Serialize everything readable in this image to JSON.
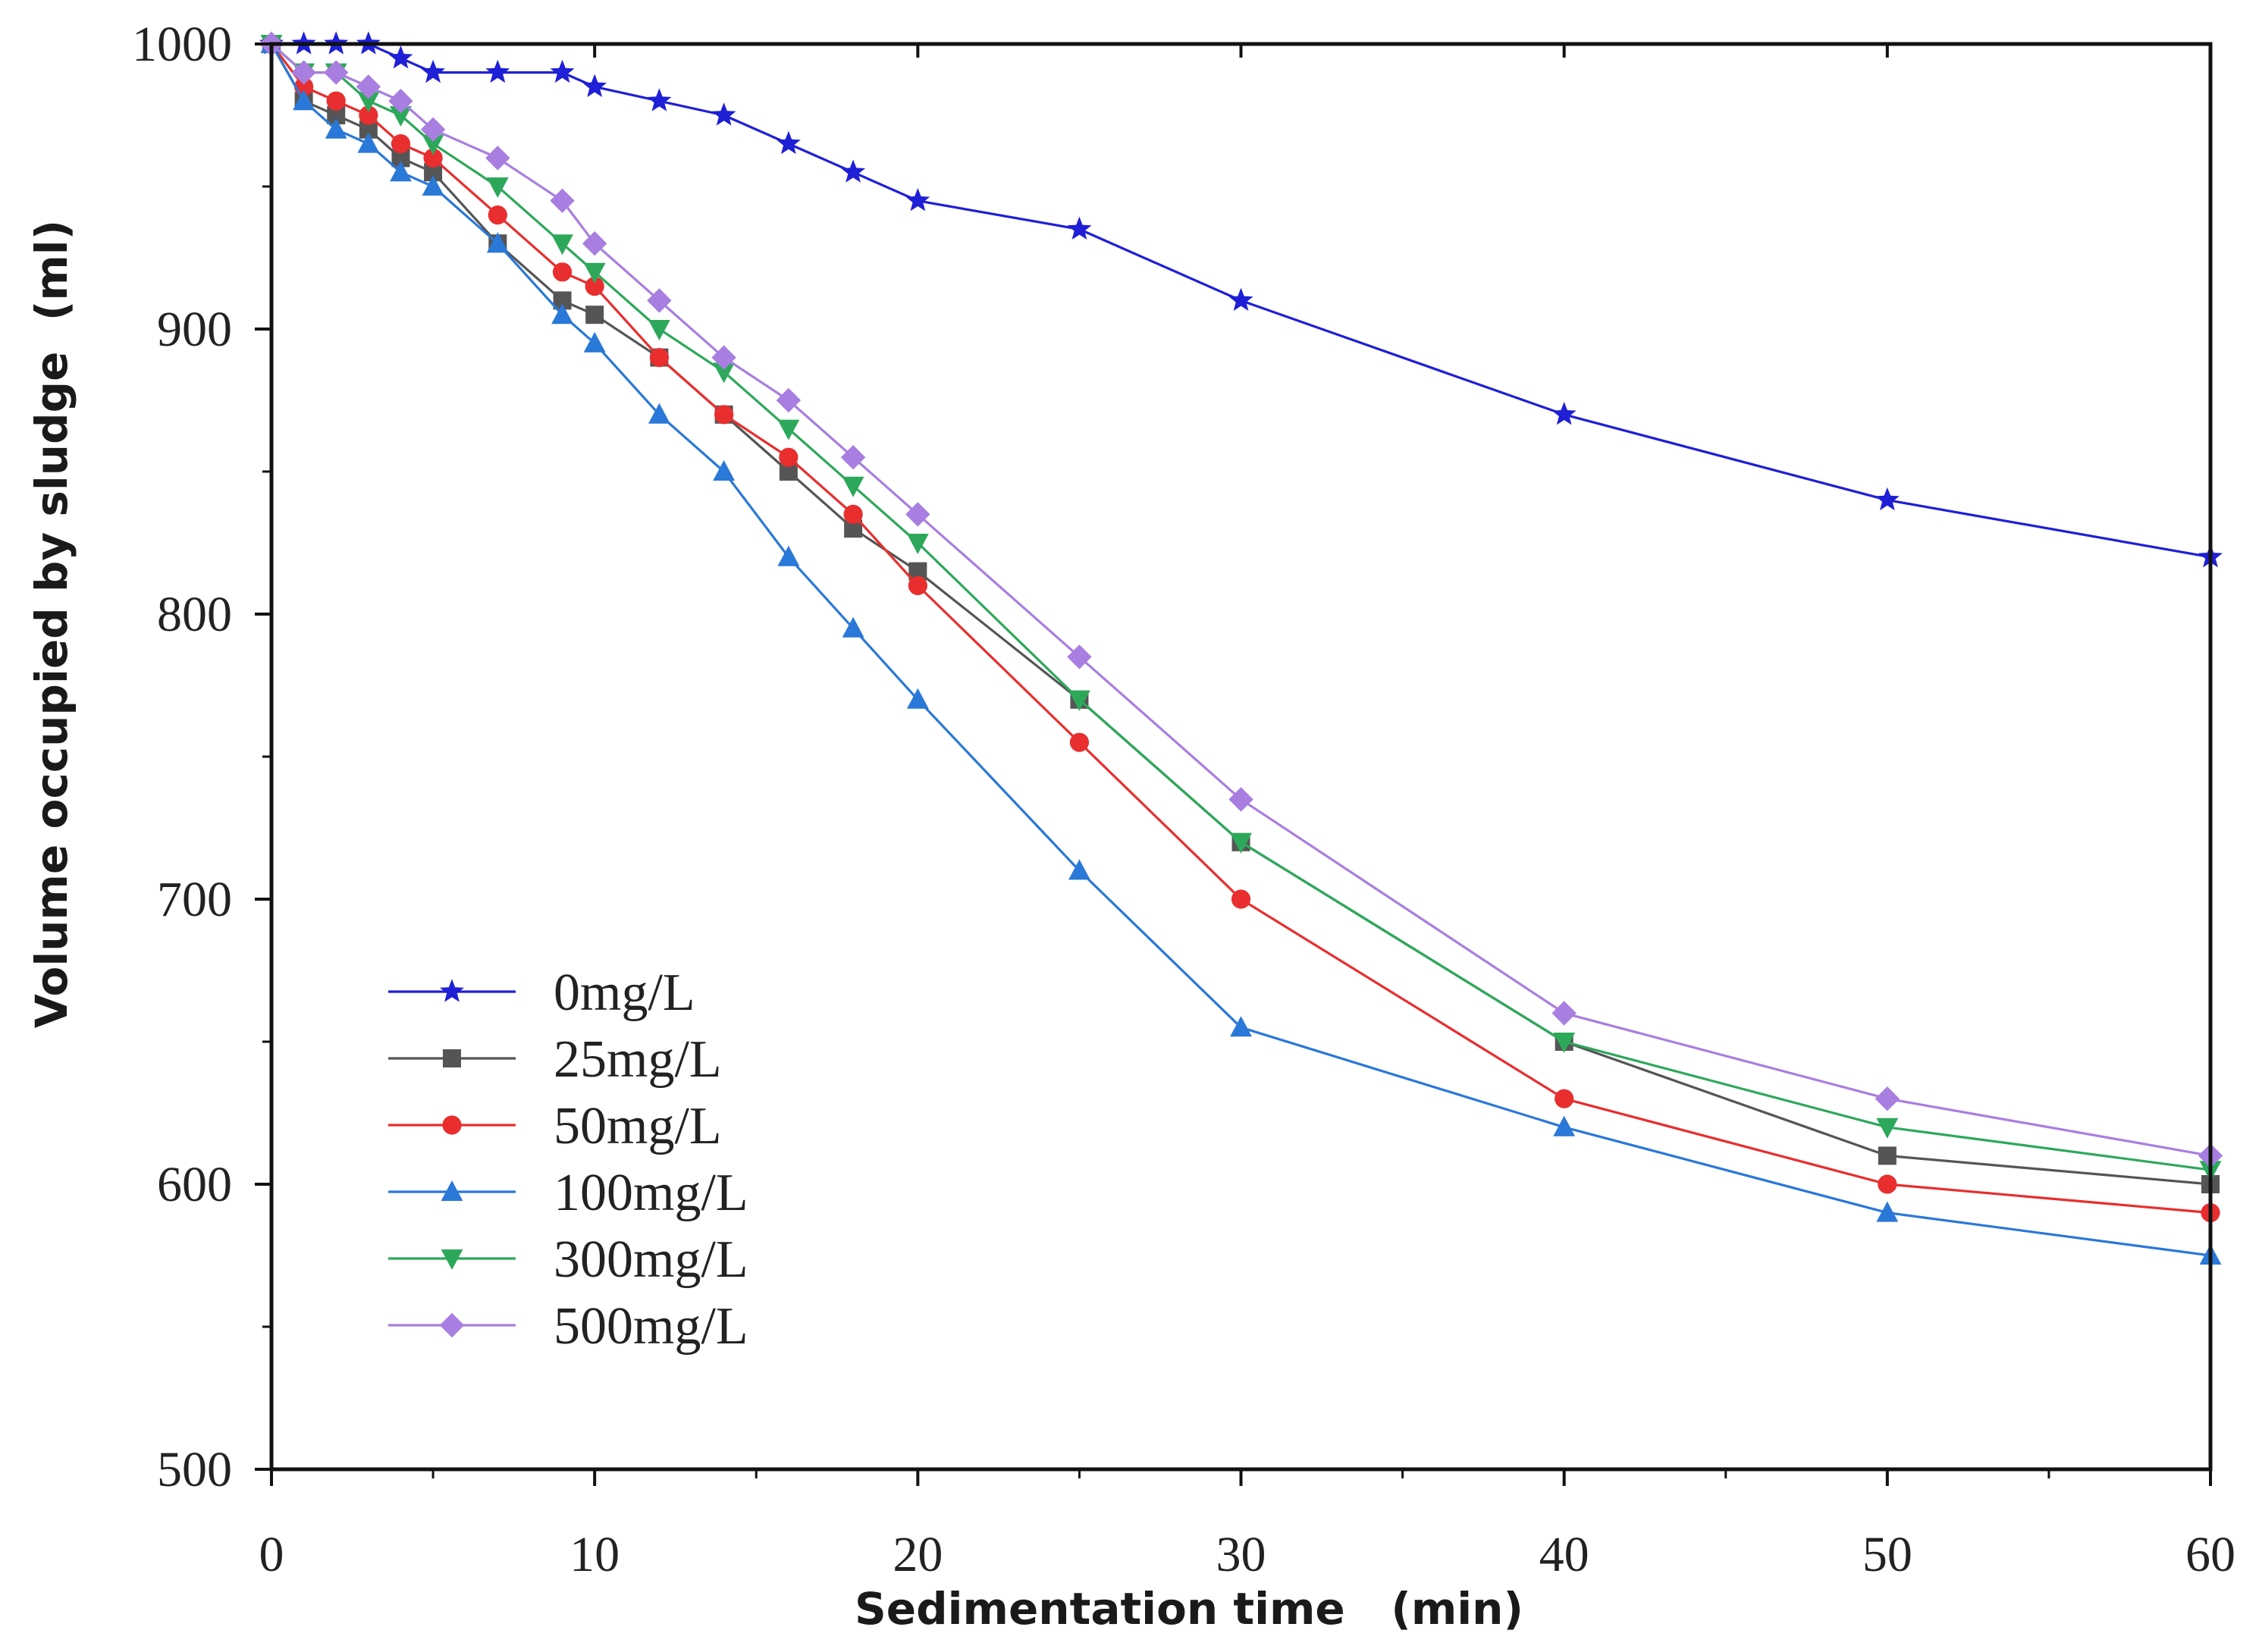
{
  "chart_data": {
    "type": "line",
    "title": "",
    "xlabel": "Sedimentation time   (min)",
    "ylabel": "Volume occupied by sludge  (ml)",
    "xlim": [
      0,
      60
    ],
    "ylim": [
      500,
      1000
    ],
    "xticks": [
      0,
      10,
      20,
      30,
      40,
      50,
      60
    ],
    "yticks": [
      500,
      600,
      700,
      800,
      900,
      1000
    ],
    "xtick_labels": [
      "0",
      "10",
      "20",
      "30",
      "40",
      "50",
      "60"
    ],
    "ytick_labels": [
      "500",
      "600",
      "700",
      "800",
      "900",
      "1000"
    ],
    "grid": false,
    "legend_position": "lower-left",
    "series": [
      {
        "name": "0mg/L",
        "color": "#1f1fd6",
        "marker": "star",
        "x": [
          0,
          1,
          2,
          3,
          4,
          5,
          7,
          9,
          10,
          12,
          14,
          16,
          18,
          20,
          25,
          30,
          40,
          50,
          60
        ],
        "values": [
          1000,
          1000,
          1000,
          1000,
          995,
          990,
          990,
          990,
          985,
          980,
          975,
          965,
          955,
          945,
          935,
          910,
          870,
          840,
          820
        ]
      },
      {
        "name": "25mg/L",
        "color": "#555555",
        "marker": "square",
        "x": [
          0,
          1,
          2,
          3,
          4,
          5,
          7,
          9,
          10,
          12,
          14,
          16,
          18,
          20,
          25,
          30,
          40,
          50,
          60
        ],
        "values": [
          1000,
          980,
          975,
          970,
          960,
          955,
          930,
          910,
          905,
          890,
          870,
          850,
          830,
          815,
          770,
          720,
          650,
          610,
          600
        ]
      },
      {
        "name": "50mg/L",
        "color": "#e82e2e",
        "marker": "circle",
        "x": [
          0,
          1,
          2,
          3,
          4,
          5,
          7,
          9,
          10,
          12,
          14,
          16,
          18,
          20,
          25,
          30,
          40,
          50,
          60
        ],
        "values": [
          1000,
          985,
          980,
          975,
          965,
          960,
          940,
          920,
          915,
          890,
          870,
          855,
          835,
          810,
          755,
          700,
          630,
          600,
          590
        ]
      },
      {
        "name": "100mg/L",
        "color": "#2a78d8",
        "marker": "triangle-up",
        "x": [
          0,
          1,
          2,
          3,
          4,
          5,
          7,
          9,
          10,
          12,
          14,
          16,
          18,
          20,
          25,
          30,
          40,
          50,
          60
        ],
        "values": [
          1000,
          980,
          970,
          965,
          955,
          950,
          930,
          905,
          895,
          870,
          850,
          820,
          795,
          770,
          710,
          655,
          620,
          590,
          575
        ]
      },
      {
        "name": "300mg/L",
        "color": "#2da85a",
        "marker": "triangle-down",
        "x": [
          0,
          1,
          2,
          3,
          4,
          5,
          7,
          9,
          10,
          12,
          14,
          16,
          18,
          20,
          25,
          30,
          40,
          50,
          60
        ],
        "values": [
          1000,
          990,
          990,
          980,
          975,
          965,
          950,
          930,
          920,
          900,
          885,
          865,
          845,
          825,
          770,
          720,
          650,
          620,
          605
        ]
      },
      {
        "name": "500mg/L",
        "color": "#a87ee0",
        "marker": "diamond",
        "x": [
          0,
          1,
          2,
          3,
          4,
          5,
          7,
          9,
          10,
          12,
          14,
          16,
          18,
          20,
          25,
          30,
          40,
          50,
          60
        ],
        "values": [
          1000,
          990,
          990,
          985,
          980,
          970,
          960,
          945,
          930,
          910,
          890,
          875,
          855,
          835,
          785,
          735,
          660,
          630,
          610
        ]
      }
    ]
  }
}
